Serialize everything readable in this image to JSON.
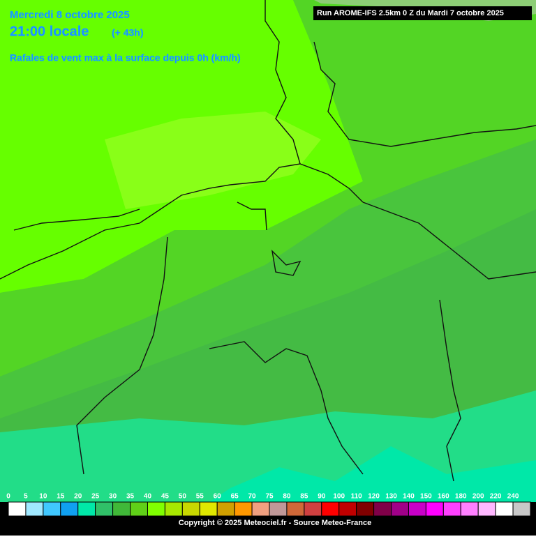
{
  "header": {
    "date": "Mercredi 8 octobre 2025",
    "time": "21:00 locale",
    "lead": "(+ 43h)",
    "parameter": "Rafales de vent max à la surface depuis 0h (km/h)",
    "run": "Run AROME-IFS 2.5km 0 Z du Mardi 7 octobre 2025"
  },
  "legend": {
    "items": [
      {
        "label": 0,
        "color": "#ffffff"
      },
      {
        "label": 5,
        "color": "#a0e8ff"
      },
      {
        "label": 10,
        "color": "#40c8ff"
      },
      {
        "label": 15,
        "color": "#10a0f0"
      },
      {
        "label": 20,
        "color": "#00e8a8"
      },
      {
        "label": 25,
        "color": "#30c068"
      },
      {
        "label": 30,
        "color": "#40b838"
      },
      {
        "label": 35,
        "color": "#60d018"
      },
      {
        "label": 40,
        "color": "#80ff00"
      },
      {
        "label": 45,
        "color": "#a8e800"
      },
      {
        "label": 50,
        "color": "#c8d800"
      },
      {
        "label": 55,
        "color": "#e0e800"
      },
      {
        "label": 60,
        "color": "#d0a000"
      },
      {
        "label": 65,
        "color": "#ff9800"
      },
      {
        "label": 70,
        "color": "#f0a080"
      },
      {
        "label": 75,
        "color": "#c09898"
      },
      {
        "label": 80,
        "color": "#d06838"
      },
      {
        "label": 85,
        "color": "#d04040"
      },
      {
        "label": 90,
        "color": "#ff0000"
      },
      {
        "label": 100,
        "color": "#c00000"
      },
      {
        "label": 110,
        "color": "#800000"
      },
      {
        "label": 120,
        "color": "#800048"
      },
      {
        "label": 130,
        "color": "#a00088"
      },
      {
        "label": 140,
        "color": "#c800c8"
      },
      {
        "label": 150,
        "color": "#ff00ff"
      },
      {
        "label": 160,
        "color": "#ff40ff"
      },
      {
        "label": 180,
        "color": "#ff80ff"
      },
      {
        "label": 200,
        "color": "#ffb8ff"
      },
      {
        "label": 220,
        "color": "#ffffff"
      },
      {
        "label": 240,
        "color": "#c8c8c8"
      }
    ]
  },
  "footer": {
    "copyright": "Copyright © 2025 Meteociel.fr - Source Meteo-France"
  }
}
